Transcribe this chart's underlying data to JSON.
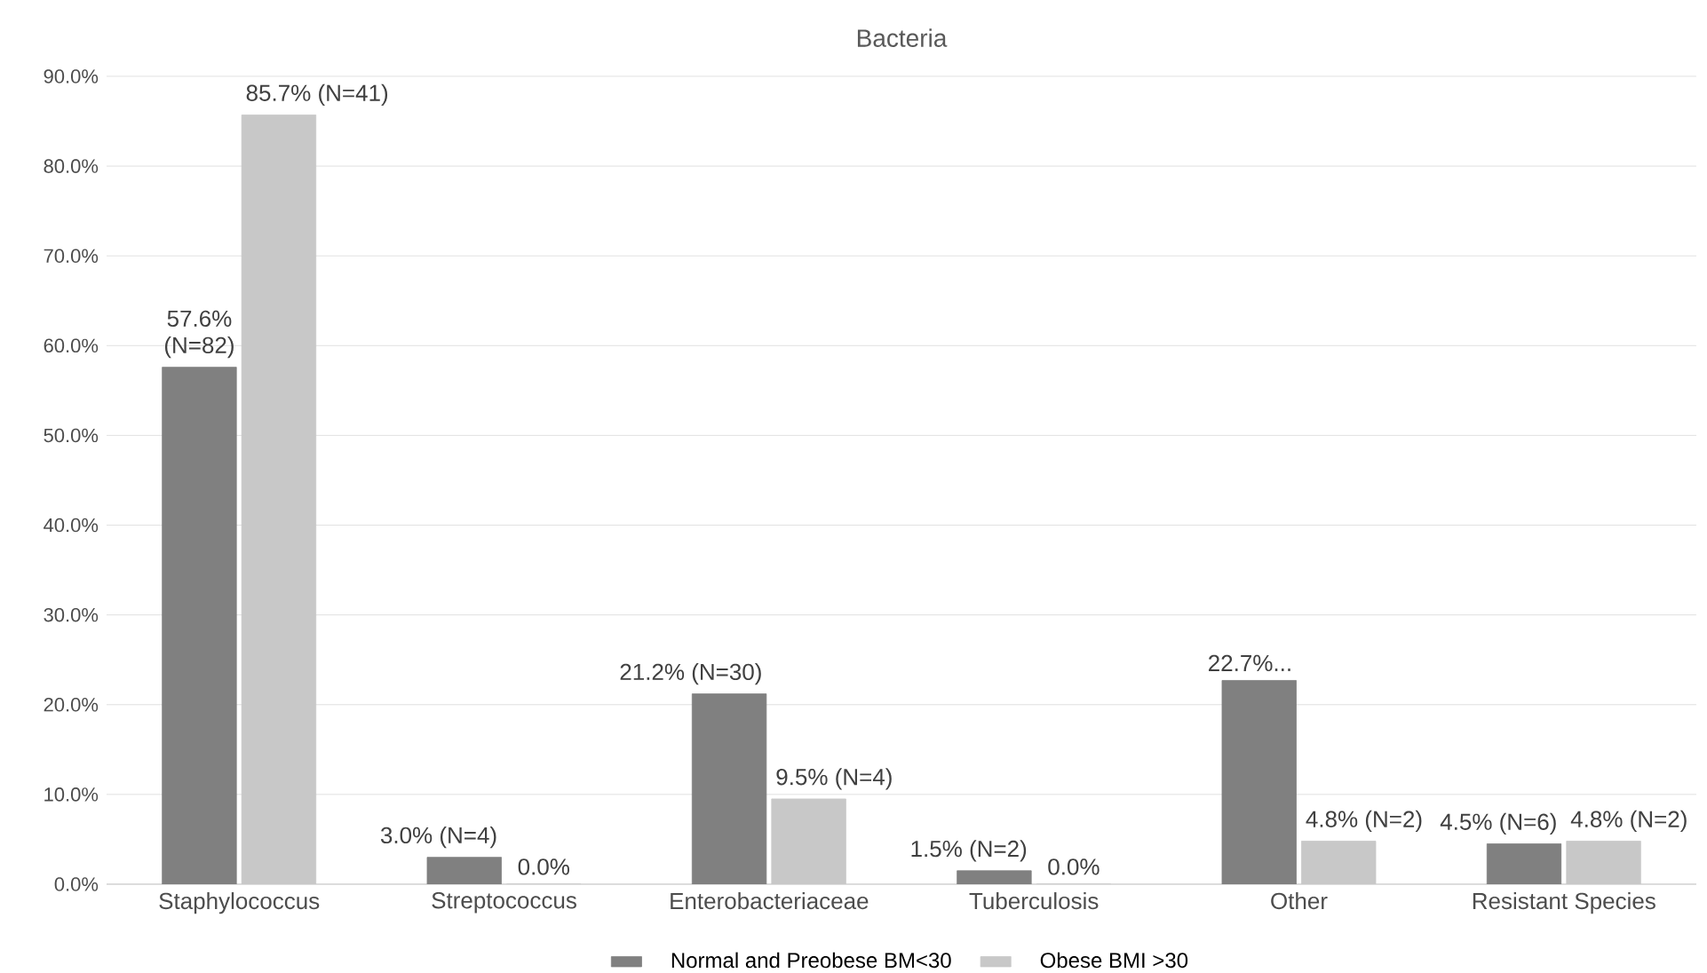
{
  "chart_data": {
    "type": "bar",
    "title": "Bacteria",
    "categories": [
      "Staphylococcus",
      "Streptococcus",
      "Enterobacteriaceae",
      "Tuberculosis",
      "Other",
      "Resistant Species"
    ],
    "series": [
      {
        "name": "Normal and Preobese BM<30",
        "color": "#808080",
        "values": [
          57.6,
          3.0,
          21.2,
          1.5,
          22.7,
          4.5
        ],
        "value_labels": [
          "57.6% (N=82)",
          "3.0% (N=4)",
          "21.2% (N=30)",
          "1.5% (N=2)",
          "22.7%...",
          "4.5% (N=6)"
        ]
      },
      {
        "name": "Obese BMI >30",
        "color": "#c8c8c8",
        "values": [
          85.7,
          0.0,
          9.5,
          0.0,
          4.8,
          4.8
        ],
        "value_labels": [
          "85.7% (N=41)",
          "0.0%",
          "9.5% (N=4)",
          "0.0%",
          "4.8% (N=2)",
          "4.8% (N=2)"
        ]
      }
    ],
    "ylim": [
      0,
      90
    ],
    "yticks": [
      {
        "value": 0,
        "label": "0.0%"
      },
      {
        "value": 10,
        "label": "10.0%"
      },
      {
        "value": 20,
        "label": "20.0%"
      },
      {
        "value": 30,
        "label": "30.0%"
      },
      {
        "value": 40,
        "label": "40.0%"
      },
      {
        "value": 50,
        "label": "50.0%"
      },
      {
        "value": 60,
        "label": "60.0%"
      },
      {
        "value": 70,
        "label": "70.0%"
      },
      {
        "value": 80,
        "label": "80.0%"
      },
      {
        "value": 90,
        "label": "90.0%"
      }
    ],
    "grid": "y",
    "legend": "bottom"
  }
}
